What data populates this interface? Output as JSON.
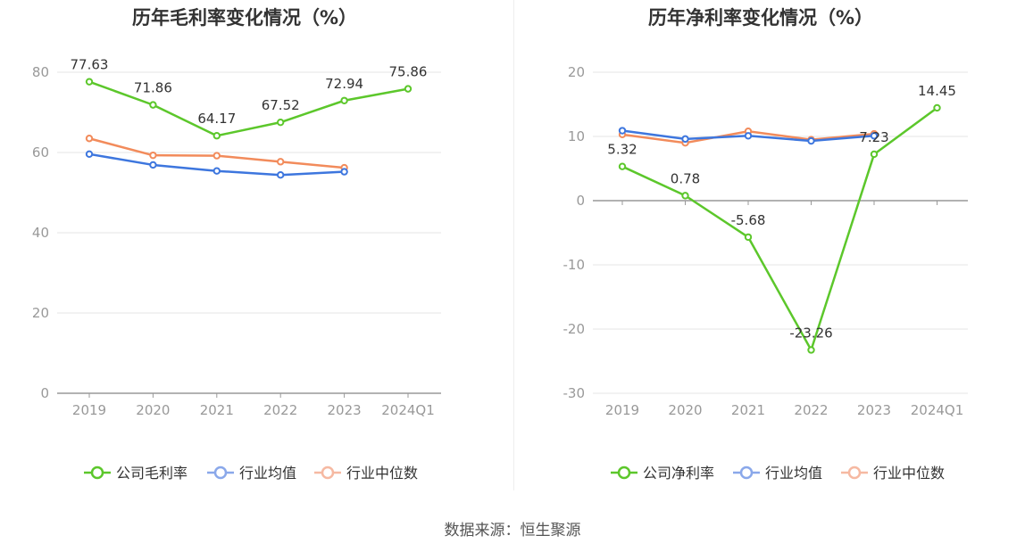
{
  "source": "数据来源：恒生聚源",
  "colors": {
    "company": "#5cc72b",
    "avg": "#3d76de",
    "median": "#f28b5b",
    "avg_legend": "#8aa8ea",
    "median_legend": "#f6b9a2"
  },
  "chart_data": [
    {
      "type": "line",
      "title": "历年毛利率变化情况（%）",
      "categories": [
        "2019",
        "2020",
        "2021",
        "2022",
        "2023",
        "2024Q1"
      ],
      "ylim": [
        0,
        80
      ],
      "yticks": [
        0,
        20,
        40,
        60,
        80
      ],
      "grid": true,
      "legend_position": "bottom",
      "series": [
        {
          "name": "公司毛利率",
          "values": [
            77.63,
            71.86,
            64.17,
            67.52,
            72.94,
            75.86
          ],
          "labels": true
        },
        {
          "name": "行业均值",
          "values": [
            59.6,
            56.9,
            55.4,
            54.4,
            55.2,
            null
          ]
        },
        {
          "name": "行业中位数",
          "values": [
            63.5,
            59.3,
            59.2,
            57.7,
            56.2,
            null
          ]
        }
      ]
    },
    {
      "type": "line",
      "title": "历年净利率变化情况（%）",
      "categories": [
        "2019",
        "2020",
        "2021",
        "2022",
        "2023",
        "2024Q1"
      ],
      "ylim": [
        -30,
        20
      ],
      "yticks": [
        -30,
        -20,
        -10,
        0,
        10,
        20
      ],
      "grid": true,
      "legend_position": "bottom",
      "series": [
        {
          "name": "公司净利率",
          "values": [
            5.32,
            0.78,
            -5.68,
            -23.26,
            7.23,
            14.45
          ],
          "labels": true
        },
        {
          "name": "行业均值",
          "values": [
            10.9,
            9.6,
            10.1,
            9.3,
            10.1,
            null
          ]
        },
        {
          "name": "行业中位数",
          "values": [
            10.3,
            9.0,
            10.8,
            9.5,
            10.4,
            null
          ]
        }
      ]
    }
  ]
}
